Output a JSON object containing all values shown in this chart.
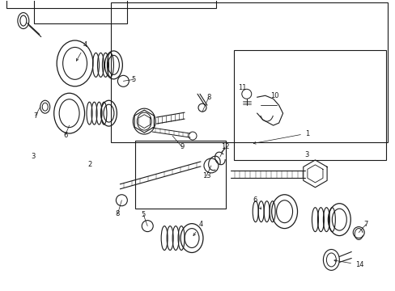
{
  "bg_color": "#ffffff",
  "line_color": "#1a1a1a",
  "fig_width": 4.89,
  "fig_height": 3.6,
  "dpi": 100,
  "boxes": {
    "upper_main": [
      0.015,
      0.485,
      0.545,
      0.975
    ],
    "upper_inner": [
      0.085,
      0.555,
      0.32,
      0.945
    ],
    "lower_main": [
      0.28,
      0.045,
      0.98,
      0.495
    ],
    "lower_inner1": [
      0.34,
      0.055,
      0.57,
      0.28
    ],
    "lower_inner2": [
      0.59,
      0.175,
      0.975,
      0.49
    ]
  }
}
